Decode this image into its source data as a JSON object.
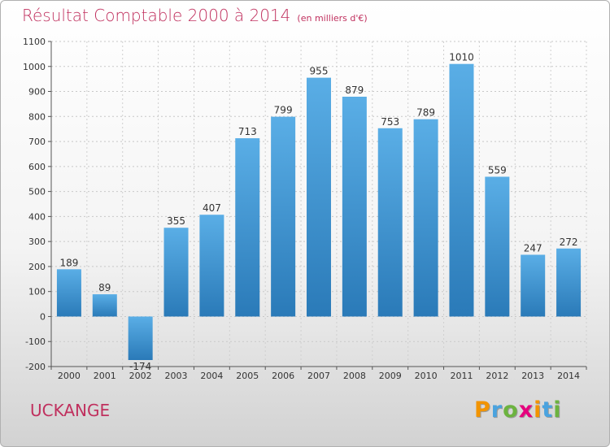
{
  "title": "Résultat Comptable 2000 à 2014",
  "unit": "(en milliers d'€)",
  "commune": "UCKANGE",
  "logo": {
    "letters": [
      "P",
      "r",
      "o",
      "x",
      "i",
      "t",
      "i"
    ],
    "colors": [
      "#f29400",
      "#4aa3df",
      "#6cb33f",
      "#e6007e",
      "#f29400",
      "#4aa3df",
      "#6cb33f"
    ]
  },
  "colors": {
    "bar_light": "#5aaee6",
    "bar_dark": "#2a7ab8",
    "title": "#c0305e"
  },
  "chart_data": {
    "type": "bar",
    "title": "Résultat Comptable 2000 à 2014",
    "categories": [
      "2000",
      "2001",
      "2002",
      "2003",
      "2004",
      "2005",
      "2006",
      "2007",
      "2008",
      "2009",
      "2010",
      "2011",
      "2012",
      "2013",
      "2014"
    ],
    "values": [
      189,
      89,
      -174,
      355,
      407,
      713,
      799,
      955,
      879,
      753,
      789,
      1010,
      559,
      247,
      272
    ],
    "value_labels": [
      "189",
      "89",
      "-174",
      "355",
      "407",
      "713",
      "799",
      "955",
      "879",
      "753",
      "789",
      "1010",
      "559",
      "247",
      "272"
    ],
    "ylim": [
      -200,
      1100
    ],
    "yticks": [
      -200,
      -100,
      0,
      100,
      200,
      300,
      400,
      500,
      600,
      700,
      800,
      900,
      1000,
      1100
    ],
    "ytick_labels": [
      "-200",
      "-100",
      "0",
      "100",
      "200",
      "300",
      "400",
      "500",
      "600",
      "700",
      "800",
      "900",
      "1000",
      "1100"
    ],
    "grid": true
  }
}
